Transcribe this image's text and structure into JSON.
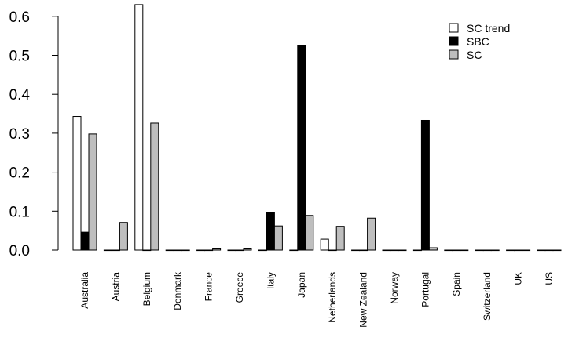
{
  "chart_data": {
    "type": "bar",
    "categories": [
      "Australia",
      "Austria",
      "Belgium",
      "Denmark",
      "France",
      "Greece",
      "Italy",
      "Japan",
      "Netherlands",
      "New Zealand",
      "Norway",
      "Portugal",
      "Spain",
      "Switzerland",
      "UK",
      "US"
    ],
    "series": [
      {
        "name": "SC trend",
        "color": "#ffffff",
        "values": [
          0.343,
          0.0,
          0.63,
          0.0,
          0.0,
          0.0,
          0.0,
          0.0,
          0.028,
          0.0,
          0.0,
          0.0,
          0.0,
          0.0,
          0.0,
          0.0
        ]
      },
      {
        "name": "SBC",
        "color": "#000000",
        "values": [
          0.046,
          0.0,
          0.0,
          0.0,
          0.0,
          0.0,
          0.097,
          0.525,
          0.0,
          0.0,
          0.0,
          0.333,
          0.0,
          0.0,
          0.0,
          0.0
        ]
      },
      {
        "name": "SC",
        "color": "#bebebe",
        "values": [
          0.298,
          0.071,
          0.326,
          0.0,
          0.003,
          0.003,
          0.062,
          0.089,
          0.061,
          0.082,
          0.0,
          0.006,
          0.0,
          0.0,
          0.0,
          0.0
        ]
      }
    ],
    "yticks": [
      "0.0",
      "0.1",
      "0.2",
      "0.3",
      "0.4",
      "0.5",
      "0.6"
    ],
    "ylim": [
      0,
      0.63
    ],
    "xlabel": "",
    "ylabel": "",
    "title": "",
    "grid": false,
    "legend": "top-right"
  }
}
